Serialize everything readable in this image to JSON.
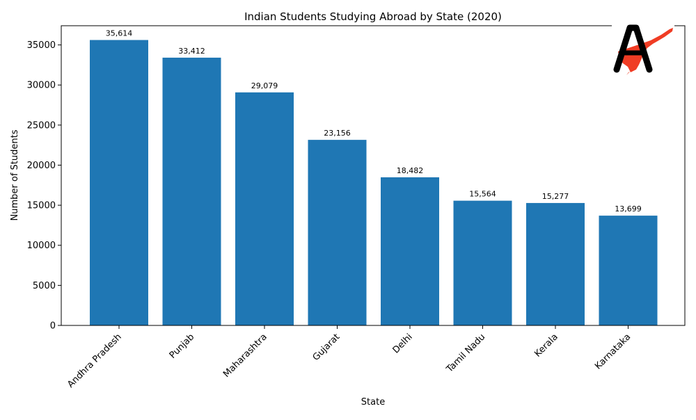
{
  "chart_data": {
    "type": "bar",
    "title": "Indian Students Studying Abroad by State (2020)",
    "xlabel": "State",
    "ylabel": "Number of Students",
    "categories": [
      "Andhra Pradesh",
      "Punjab",
      "Maharashtra",
      "Gujarat",
      "Delhi",
      "Tamil Nadu",
      "Kerala",
      "Karnataka"
    ],
    "values": [
      35614,
      33412,
      29079,
      23156,
      18482,
      15564,
      15277,
      13699
    ],
    "data_labels": [
      "35,614",
      "33,412",
      "29,079",
      "23,156",
      "18,482",
      "15,564",
      "15,277",
      "13,699"
    ],
    "ylim": [
      0,
      37396
    ],
    "yticks": [
      0,
      5000,
      10000,
      15000,
      20000,
      25000,
      30000,
      35000
    ],
    "ytick_labels": [
      "0",
      "5000",
      "10000",
      "15000",
      "20000",
      "25000",
      "30000",
      "35000"
    ],
    "xtick_rotation": 45,
    "grid": false,
    "legend": "none",
    "bar_color": "#1f77b4"
  },
  "logo": {
    "icon": "stylized-letter-a-with-red-map-of-india-icon",
    "letter": "A",
    "letter_color": "#000000",
    "map_color": "#f03c24"
  }
}
